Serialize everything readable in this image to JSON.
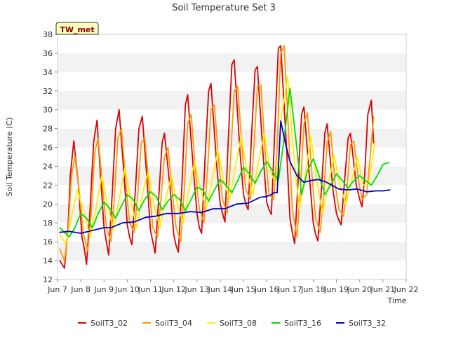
{
  "chart_data": {
    "type": "line",
    "title": "Soil Temperature Set 3",
    "xlabel": "Time",
    "ylabel": "Soil Temperature (C)",
    "xlim": [
      7.0,
      22.0
    ],
    "ylim": [
      12,
      38
    ],
    "x_ticks": [
      7,
      8,
      9,
      10,
      11,
      12,
      13,
      14,
      15,
      16,
      17,
      18,
      19,
      20,
      21,
      22
    ],
    "x_tick_labels": [
      "Jun 7",
      "Jun 8",
      "Jun 9",
      "Jun 10",
      "Jun 11",
      "Jun 12",
      "Jun 13",
      "Jun 14",
      "Jun 15",
      "Jun 16",
      "Jun 17",
      "Jun 18",
      "Jun 19",
      "Jun 20",
      "Jun 21",
      "Jun 22"
    ],
    "y_ticks": [
      12,
      14,
      16,
      18,
      20,
      22,
      24,
      26,
      28,
      30,
      32,
      34,
      36,
      38
    ],
    "y_tick_labels": [
      "12",
      "14",
      "16",
      "18",
      "20",
      "22",
      "24",
      "26",
      "28",
      "30",
      "32",
      "34",
      "36",
      "38"
    ],
    "grid": "horizontal alternating bands",
    "legend_position": "bottom",
    "annotation": "TW_met",
    "series": [
      {
        "name": "SoilT3_02",
        "color": "#dd0000",
        "x": [
          7.1,
          7.3,
          7.45,
          7.55,
          7.7,
          7.9,
          8.05,
          8.15,
          8.25,
          8.4,
          8.55,
          8.7,
          8.85,
          9.0,
          9.1,
          9.2,
          9.35,
          9.5,
          9.65,
          9.85,
          10.0,
          10.1,
          10.2,
          10.35,
          10.5,
          10.65,
          10.85,
          11.0,
          11.1,
          11.2,
          11.35,
          11.5,
          11.6,
          11.85,
          12.0,
          12.1,
          12.2,
          12.35,
          12.5,
          12.6,
          12.85,
          13.0,
          13.1,
          13.2,
          13.35,
          13.5,
          13.6,
          13.85,
          14.0,
          14.1,
          14.2,
          14.35,
          14.5,
          14.6,
          14.85,
          15.0,
          15.1,
          15.2,
          15.35,
          15.5,
          15.6,
          15.85,
          16.0,
          16.1,
          16.2,
          16.35,
          16.5,
          16.6,
          16.85,
          17.0,
          17.1,
          17.2,
          17.35,
          17.5,
          17.6,
          17.85,
          18.0,
          18.1,
          18.2,
          18.35,
          18.5,
          18.6,
          18.85,
          19.0,
          19.1,
          19.2,
          19.35,
          19.5,
          19.6,
          19.85,
          20.0,
          20.1,
          20.2,
          20.35,
          20.5,
          20.6
        ],
        "y": [
          14.0,
          13.2,
          17.5,
          23.0,
          26.7,
          22.0,
          16.5,
          15.3,
          13.6,
          19.5,
          26.5,
          28.9,
          23.0,
          17.5,
          16.0,
          14.6,
          21.0,
          28.0,
          30.0,
          23.5,
          17.8,
          16.5,
          15.7,
          21.5,
          28.0,
          29.3,
          22.5,
          17.2,
          16.0,
          14.8,
          20.5,
          26.5,
          27.5,
          21.5,
          16.7,
          15.6,
          14.9,
          22.0,
          30.5,
          31.6,
          23.5,
          19.0,
          17.5,
          16.9,
          25.0,
          32.0,
          32.8,
          24.0,
          20.0,
          19.0,
          18.1,
          27.0,
          34.8,
          35.3,
          25.5,
          21.0,
          20.0,
          19.4,
          27.5,
          34.2,
          34.6,
          25.0,
          20.2,
          19.4,
          18.9,
          28.0,
          36.5,
          36.8,
          26.0,
          18.5,
          17.0,
          15.8,
          22.5,
          29.5,
          30.3,
          22.5,
          18.0,
          16.8,
          16.1,
          21.5,
          27.5,
          28.5,
          21.5,
          19.0,
          18.3,
          17.8,
          22.5,
          27.0,
          27.5,
          22.0,
          20.5,
          19.7,
          22.5,
          29.5,
          31.0,
          26.5
        ]
      },
      {
        "name": "SoilT3_04",
        "color": "#ff9900",
        "x": [
          7.1,
          7.3,
          7.45,
          7.6,
          7.75,
          7.95,
          8.1,
          8.3,
          8.45,
          8.6,
          8.75,
          8.95,
          9.1,
          9.3,
          9.45,
          9.6,
          9.75,
          9.95,
          10.1,
          10.3,
          10.45,
          10.6,
          10.75,
          10.95,
          11.1,
          11.3,
          11.45,
          11.6,
          11.75,
          11.95,
          12.1,
          12.3,
          12.45,
          12.6,
          12.75,
          12.95,
          13.1,
          13.3,
          13.45,
          13.6,
          13.75,
          13.95,
          14.1,
          14.3,
          14.45,
          14.6,
          14.75,
          14.95,
          15.1,
          15.3,
          15.45,
          15.6,
          15.75,
          15.95,
          16.1,
          16.3,
          16.45,
          16.6,
          16.75,
          16.95,
          17.1,
          17.3,
          17.45,
          17.6,
          17.75,
          17.95,
          18.1,
          18.3,
          18.45,
          18.6,
          18.75,
          18.95,
          19.1,
          19.3,
          19.45,
          19.6,
          19.75,
          19.95,
          20.1,
          20.3,
          20.45,
          20.6
        ],
        "y": [
          15.2,
          14.0,
          17.0,
          23.0,
          25.0,
          21.0,
          17.0,
          15.0,
          19.0,
          25.5,
          27.0,
          21.5,
          17.5,
          16.0,
          21.0,
          27.0,
          28.0,
          22.0,
          18.0,
          17.0,
          21.0,
          26.5,
          27.0,
          21.5,
          17.5,
          16.5,
          20.5,
          25.0,
          26.0,
          21.0,
          17.5,
          16.0,
          21.5,
          28.5,
          29.5,
          23.0,
          19.5,
          18.0,
          23.5,
          30.0,
          30.5,
          24.0,
          20.5,
          19.0,
          25.0,
          32.0,
          32.5,
          25.5,
          21.5,
          20.5,
          26.0,
          32.5,
          32.6,
          25.0,
          21.0,
          20.5,
          26.0,
          36.0,
          36.8,
          27.0,
          19.5,
          16.5,
          21.5,
          28.5,
          29.7,
          23.0,
          18.5,
          17.0,
          21.0,
          26.5,
          27.7,
          22.0,
          19.5,
          18.7,
          21.5,
          26.3,
          26.7,
          22.5,
          20.5,
          21.0,
          25.0,
          29.3
        ]
      },
      {
        "name": "SoilT3_08",
        "color": "#ffee00",
        "x": [
          7.1,
          7.35,
          7.6,
          7.85,
          8.15,
          8.4,
          8.65,
          8.9,
          9.15,
          9.4,
          9.65,
          9.9,
          10.15,
          10.4,
          10.65,
          10.9,
          11.15,
          11.4,
          11.65,
          11.9,
          12.15,
          12.4,
          12.65,
          12.9,
          13.15,
          13.4,
          13.65,
          13.9,
          14.15,
          14.4,
          14.65,
          14.9,
          15.15,
          15.4,
          15.65,
          15.9,
          16.15,
          16.4,
          16.65,
          16.9,
          17.15,
          17.4,
          17.65,
          17.9,
          18.15,
          18.4,
          18.65,
          18.9,
          19.15,
          19.4,
          19.65,
          19.9,
          20.15,
          20.4,
          20.65
        ],
        "y": [
          16.8,
          15.8,
          18.5,
          21.5,
          19.0,
          16.5,
          19.5,
          23.0,
          20.0,
          17.3,
          20.5,
          23.8,
          20.5,
          17.5,
          21.0,
          23.5,
          20.0,
          17.5,
          20.5,
          23.0,
          20.0,
          18.0,
          21.5,
          24.5,
          21.5,
          19.5,
          22.5,
          25.7,
          22.5,
          20.5,
          24.0,
          27.2,
          23.5,
          21.0,
          24.5,
          27.5,
          23.5,
          22.0,
          29.5,
          33.5,
          25.5,
          19.5,
          23.0,
          27.2,
          22.5,
          19.0,
          22.0,
          25.2,
          22.0,
          20.0,
          22.5,
          25.0,
          22.0,
          22.2,
          26.5
        ]
      },
      {
        "name": "SoilT3_16",
        "color": "#00dd00",
        "x": [
          7.1,
          7.3,
          7.5,
          7.75,
          8.0,
          8.25,
          8.5,
          8.75,
          9.0,
          9.25,
          9.5,
          9.75,
          10.0,
          10.25,
          10.5,
          10.75,
          11.0,
          11.25,
          11.5,
          11.75,
          12.0,
          12.25,
          12.5,
          12.75,
          13.0,
          13.25,
          13.5,
          13.75,
          14.0,
          14.25,
          14.5,
          14.75,
          15.0,
          15.25,
          15.5,
          15.75,
          16.0,
          16.25,
          16.5,
          16.75,
          17.0,
          17.25,
          17.5,
          17.75,
          18.0,
          18.25,
          18.5,
          18.75,
          19.0,
          19.25,
          19.5,
          19.75,
          20.0,
          20.25,
          20.5,
          20.75,
          21.0,
          21.25
        ],
        "y": [
          17.5,
          17.0,
          16.5,
          17.5,
          19.0,
          18.5,
          17.5,
          19.0,
          20.2,
          19.5,
          18.5,
          19.8,
          21.0,
          20.5,
          19.3,
          20.5,
          21.3,
          20.8,
          19.4,
          20.3,
          21.0,
          20.5,
          19.3,
          20.5,
          21.8,
          21.5,
          20.3,
          21.5,
          22.6,
          22.0,
          21.2,
          22.5,
          23.9,
          23.2,
          22.2,
          23.5,
          24.5,
          23.5,
          22.5,
          27.0,
          32.3,
          27.0,
          21.0,
          23.5,
          24.8,
          23.0,
          21.0,
          22.0,
          23.2,
          22.5,
          21.7,
          22.5,
          23.0,
          22.5,
          22.0,
          23.0,
          24.2,
          24.4
        ]
      },
      {
        "name": "SoilT3_32",
        "color": "#0000cc",
        "x": [
          7.1,
          7.5,
          8.0,
          8.5,
          9.0,
          9.3,
          9.8,
          10.3,
          10.8,
          11.2,
          11.7,
          12.2,
          12.7,
          13.2,
          13.7,
          14.2,
          14.7,
          15.2,
          15.7,
          16.0,
          16.2,
          16.3,
          16.45,
          16.6,
          16.8,
          17.0,
          17.3,
          17.6,
          17.9,
          18.2,
          18.5,
          18.8,
          19.1,
          19.5,
          19.9,
          20.3,
          20.7,
          21.0,
          21.3
        ],
        "y": [
          17.0,
          17.1,
          16.9,
          17.2,
          17.5,
          17.5,
          18.0,
          18.1,
          18.6,
          18.7,
          19.0,
          19.0,
          19.2,
          19.1,
          19.5,
          19.5,
          20.0,
          20.1,
          20.7,
          20.8,
          21.0,
          21.2,
          21.2,
          28.8,
          26.5,
          24.5,
          23.0,
          22.3,
          22.5,
          22.6,
          22.4,
          22.0,
          21.6,
          21.5,
          21.6,
          21.3,
          21.4,
          21.4,
          21.5
        ]
      }
    ]
  }
}
